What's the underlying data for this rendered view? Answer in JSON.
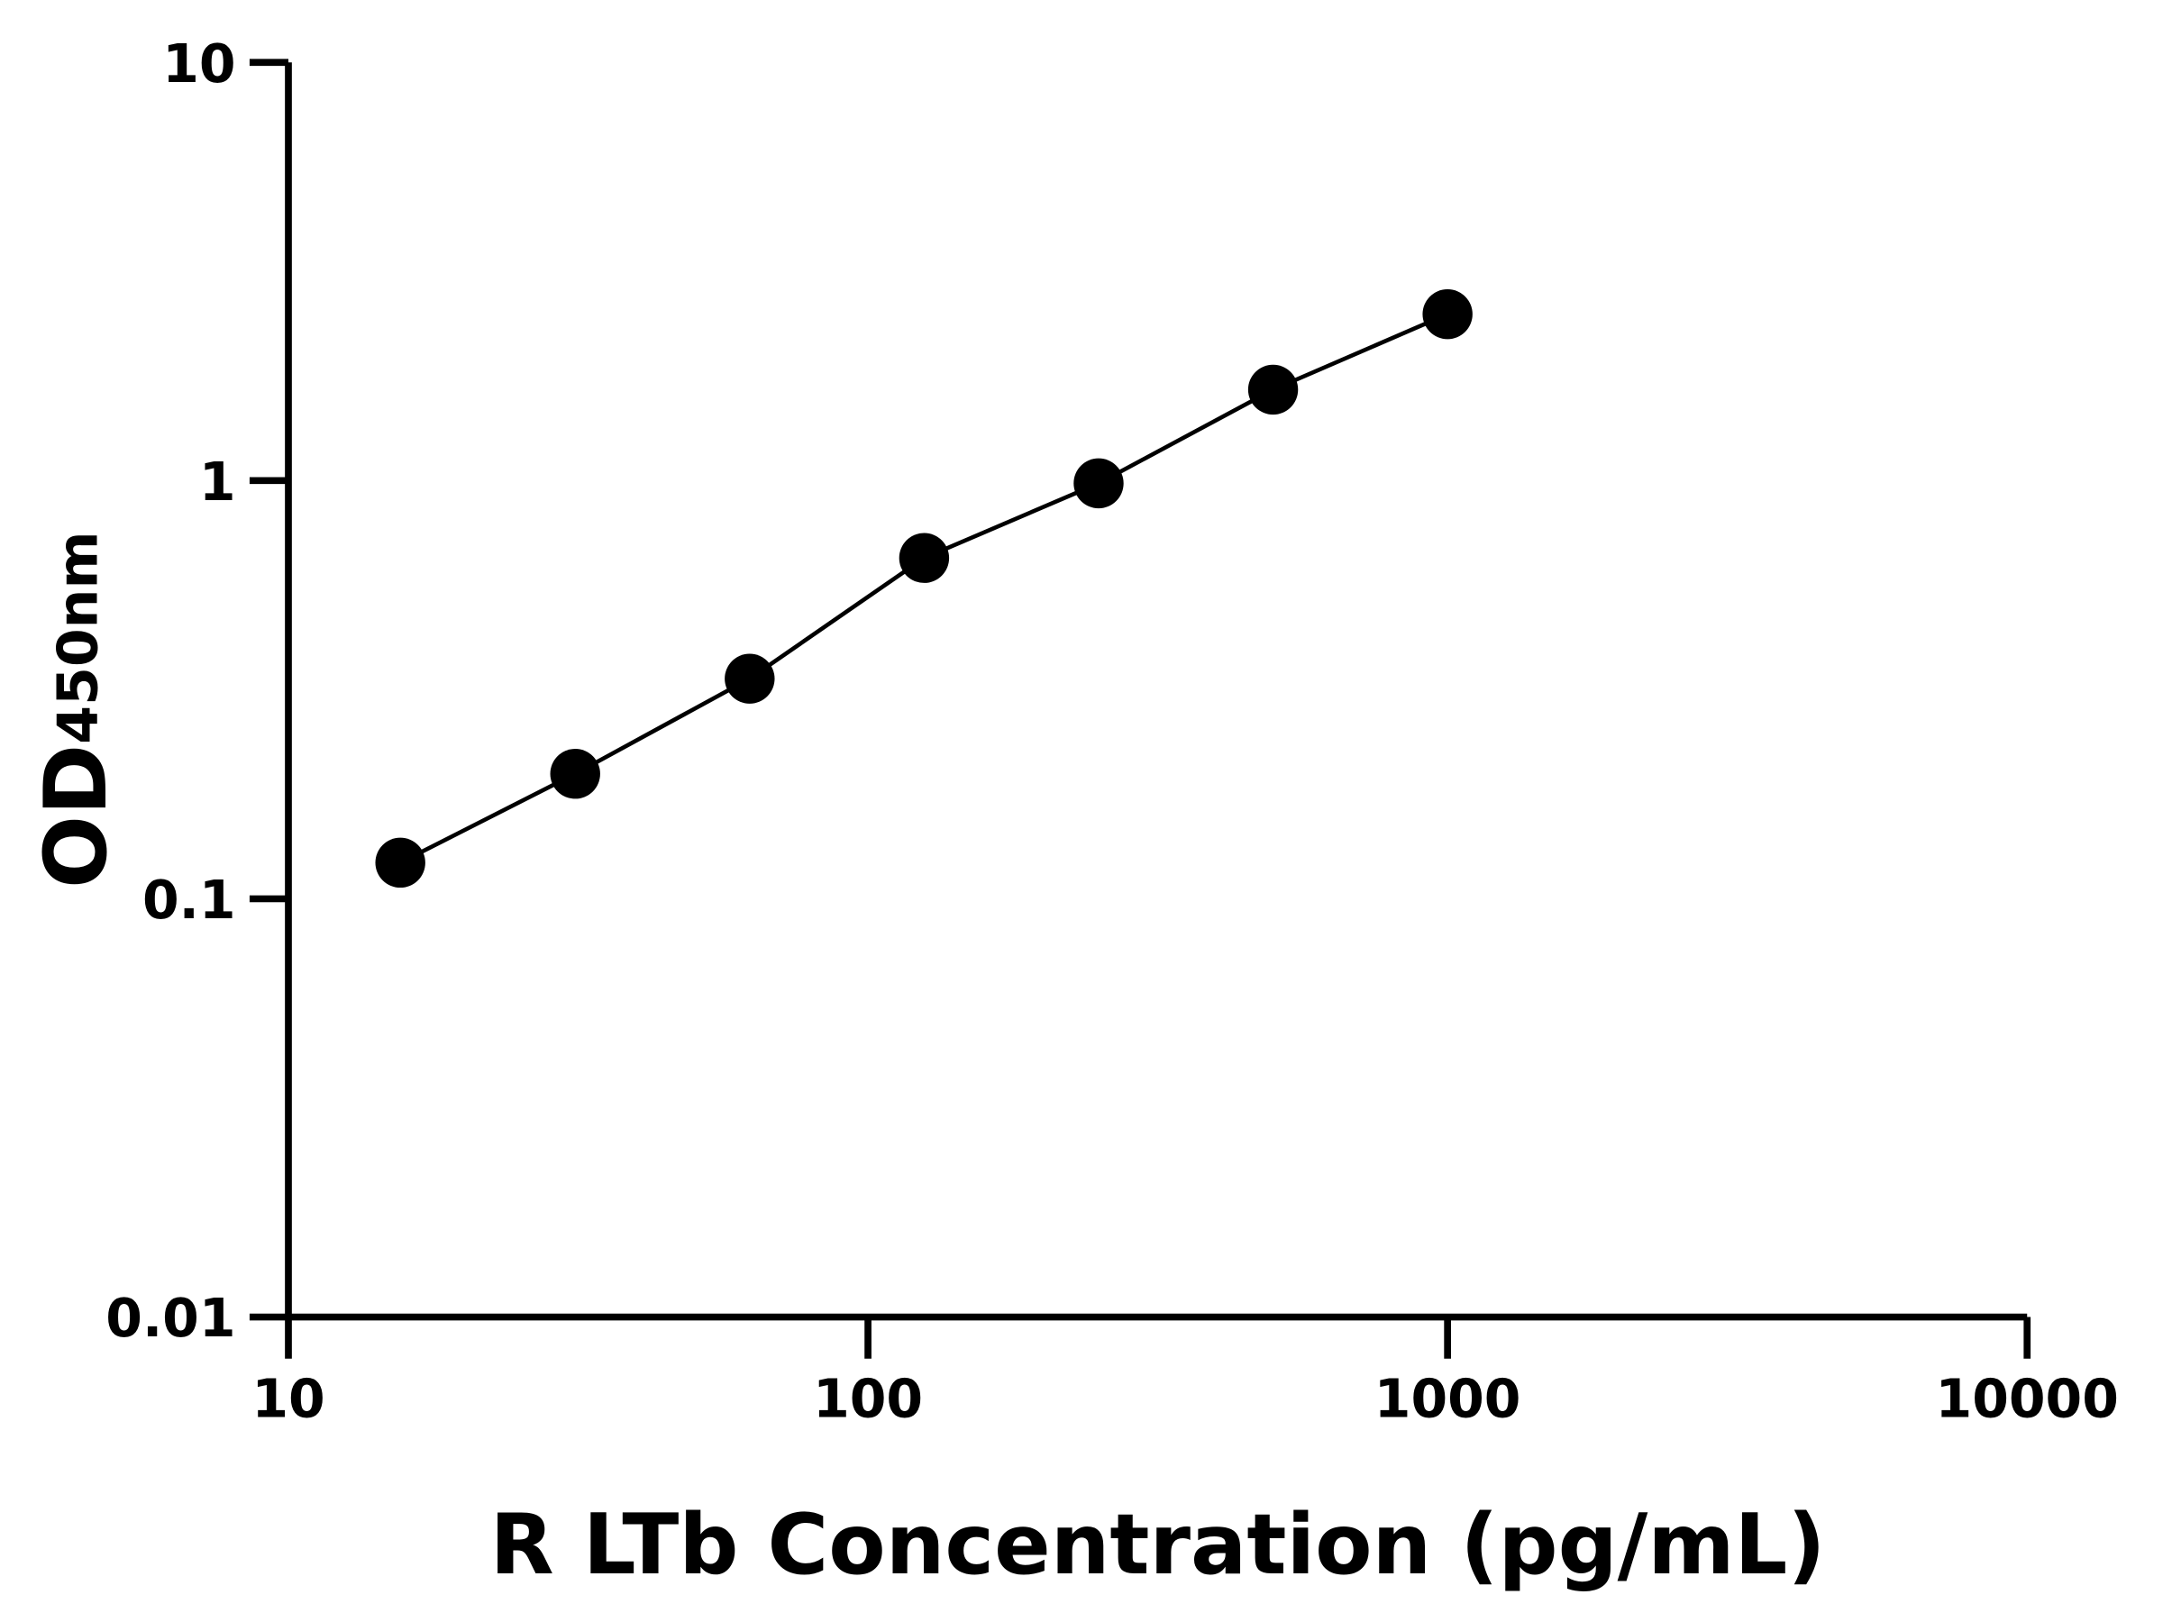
{
  "chart_data": {
    "type": "line",
    "title": "",
    "xlabel": "R LTb Concentration (pg/mL)",
    "ylabel": {
      "main": "OD",
      "subscript": "450nm"
    },
    "x_scale": "log",
    "y_scale": "log",
    "xlim": [
      10,
      10000
    ],
    "ylim": [
      0.01,
      10
    ],
    "x_ticks": [
      "10",
      "100",
      "1000",
      "10000"
    ],
    "y_ticks": [
      "0.01",
      "0.1",
      "1",
      "10"
    ],
    "grid": false,
    "legend": "none",
    "colors": {
      "line": "#000000",
      "marker": "#000000",
      "axis": "#000000"
    },
    "series": [
      {
        "x": [
          15.6,
          31.25,
          62.5,
          125,
          250,
          500,
          1000
        ],
        "y": [
          0.122,
          0.199,
          0.336,
          0.653,
          0.985,
          1.65,
          2.5
        ]
      }
    ]
  }
}
